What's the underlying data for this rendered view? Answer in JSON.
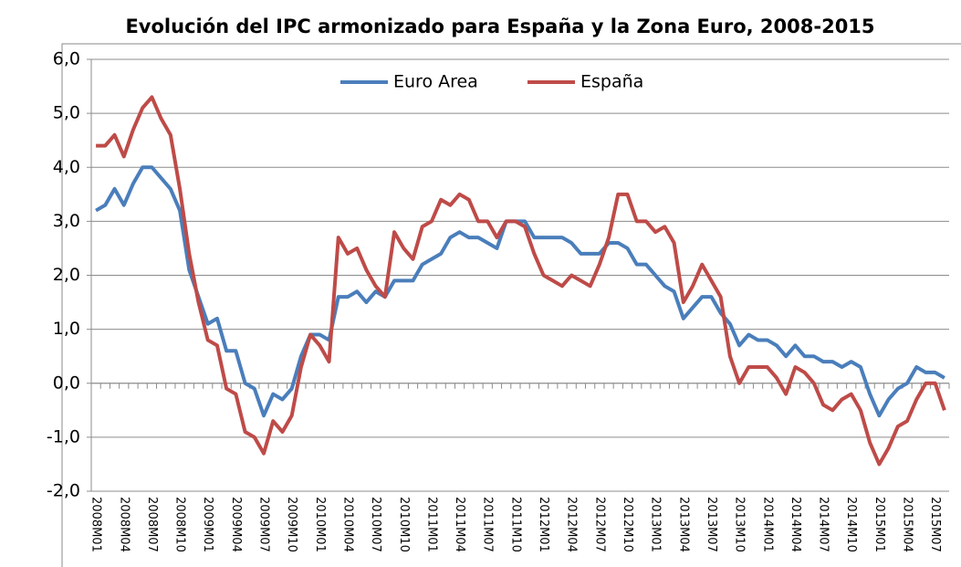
{
  "chart_data": {
    "type": "line",
    "title": "Evolución del IPC armonizado para España y la Zona Euro, 2008-2015",
    "categories": [
      "2008M01",
      null,
      null,
      "2008M04",
      null,
      null,
      "2008M07",
      null,
      null,
      "2008M10",
      null,
      null,
      "2009M01",
      null,
      null,
      "2009M04",
      null,
      null,
      "2009M07",
      null,
      null,
      "2009M10",
      null,
      null,
      "2010M01",
      null,
      null,
      "2010M04",
      null,
      null,
      "2010M07",
      null,
      null,
      "2010M10",
      null,
      null,
      "2011M01",
      null,
      null,
      "2011M04",
      null,
      null,
      "2011M07",
      null,
      null,
      "2011M10",
      null,
      null,
      "2012M01",
      null,
      null,
      "2012M04",
      null,
      null,
      "2012M07",
      null,
      null,
      "2012M10",
      null,
      null,
      "2013M01",
      null,
      null,
      "2013M04",
      null,
      null,
      "2013M07",
      null,
      null,
      "2013M10",
      null,
      null,
      "2014M01",
      null,
      null,
      "2014M04",
      null,
      null,
      "2014M07",
      null,
      null,
      "2014M10",
      null,
      null,
      "2015M01",
      null,
      null,
      "2015M04",
      null,
      null,
      "2015M07",
      null
    ],
    "series": [
      {
        "name": "Euro Area",
        "color": "#4a7ebb",
        "values": [
          3.2,
          3.3,
          3.6,
          3.3,
          3.7,
          4.0,
          4.0,
          3.8,
          3.6,
          3.2,
          2.1,
          1.6,
          1.1,
          1.2,
          0.6,
          0.6,
          0.0,
          -0.1,
          -0.6,
          -0.2,
          -0.3,
          -0.1,
          0.5,
          0.9,
          0.9,
          0.8,
          1.6,
          1.6,
          1.7,
          1.5,
          1.7,
          1.6,
          1.9,
          1.9,
          1.9,
          2.2,
          2.3,
          2.4,
          2.7,
          2.8,
          2.7,
          2.7,
          2.6,
          2.5,
          3.0,
          3.0,
          3.0,
          2.7,
          2.7,
          2.7,
          2.7,
          2.6,
          2.4,
          2.4,
          2.4,
          2.6,
          2.6,
          2.5,
          2.2,
          2.2,
          2.0,
          1.8,
          1.7,
          1.2,
          1.4,
          1.6,
          1.6,
          1.3,
          1.1,
          0.7,
          0.9,
          0.8,
          0.8,
          0.7,
          0.5,
          0.7,
          0.5,
          0.5,
          0.4,
          0.4,
          0.3,
          0.4,
          0.3,
          -0.2,
          -0.6,
          -0.3,
          -0.1,
          0.0,
          0.3,
          0.2,
          0.2,
          0.1
        ]
      },
      {
        "name": "España",
        "color": "#be4b48",
        "values": [
          4.4,
          4.4,
          4.6,
          4.2,
          4.7,
          5.1,
          5.3,
          4.9,
          4.6,
          3.6,
          2.4,
          1.5,
          0.8,
          0.7,
          -0.1,
          -0.2,
          -0.9,
          -1.0,
          -1.3,
          -0.7,
          -0.9,
          -0.6,
          0.3,
          0.9,
          0.7,
          0.4,
          2.7,
          2.4,
          2.5,
          2.1,
          1.8,
          1.6,
          2.8,
          2.5,
          2.3,
          2.9,
          3.0,
          3.4,
          3.3,
          3.5,
          3.4,
          3.0,
          3.0,
          2.7,
          3.0,
          3.0,
          2.9,
          2.4,
          2.0,
          1.9,
          1.8,
          2.0,
          1.9,
          1.8,
          2.2,
          2.7,
          3.5,
          3.5,
          3.0,
          3.0,
          2.8,
          2.9,
          2.6,
          1.5,
          1.8,
          2.2,
          1.9,
          1.6,
          0.5,
          0.0,
          0.3,
          0.3,
          0.3,
          0.1,
          -0.2,
          0.3,
          0.2,
          0.0,
          -0.4,
          -0.5,
          -0.3,
          -0.2,
          -0.5,
          -1.1,
          -1.5,
          -1.2,
          -0.8,
          -0.7,
          -0.3,
          0.0,
          0.0,
          -0.5
        ]
      }
    ],
    "ylim": [
      -2,
      6
    ],
    "yticks": [
      {
        "value": -2,
        "label": "-2,0"
      },
      {
        "value": -1,
        "label": "-1,0"
      },
      {
        "value": 0,
        "label": "0,0"
      },
      {
        "value": 1,
        "label": "1,0"
      },
      {
        "value": 2,
        "label": "2,0"
      },
      {
        "value": 3,
        "label": "3,0"
      },
      {
        "value": 4,
        "label": "4,0"
      },
      {
        "value": 5,
        "label": "5,0"
      },
      {
        "value": 6,
        "label": "6,0"
      }
    ],
    "grid": true,
    "legend": "top"
  }
}
